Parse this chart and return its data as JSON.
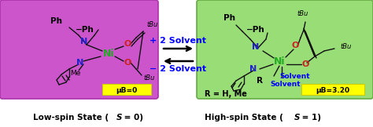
{
  "fig_width": 4.74,
  "fig_height": 1.62,
  "dpi": 100,
  "bg_color": "#ffffff",
  "left_box_color": "#cc55cc",
  "right_box_color": "#99dd77",
  "yellow_color": "#ffff00",
  "arrow_fwd": "+ 2 Solvent",
  "arrow_rev": "− 2 Solvent",
  "mu_left": "μB=0",
  "mu_right": "μB=3.20",
  "bottom_left": "Low-spin State (",
  "bottom_left_S": "S",
  "bottom_left_end": " = 0)",
  "bottom_right_pre": "High-spin State (",
  "bottom_right_S": "S",
  "bottom_right_end": " = 1)",
  "r_label": "R = H, Me"
}
